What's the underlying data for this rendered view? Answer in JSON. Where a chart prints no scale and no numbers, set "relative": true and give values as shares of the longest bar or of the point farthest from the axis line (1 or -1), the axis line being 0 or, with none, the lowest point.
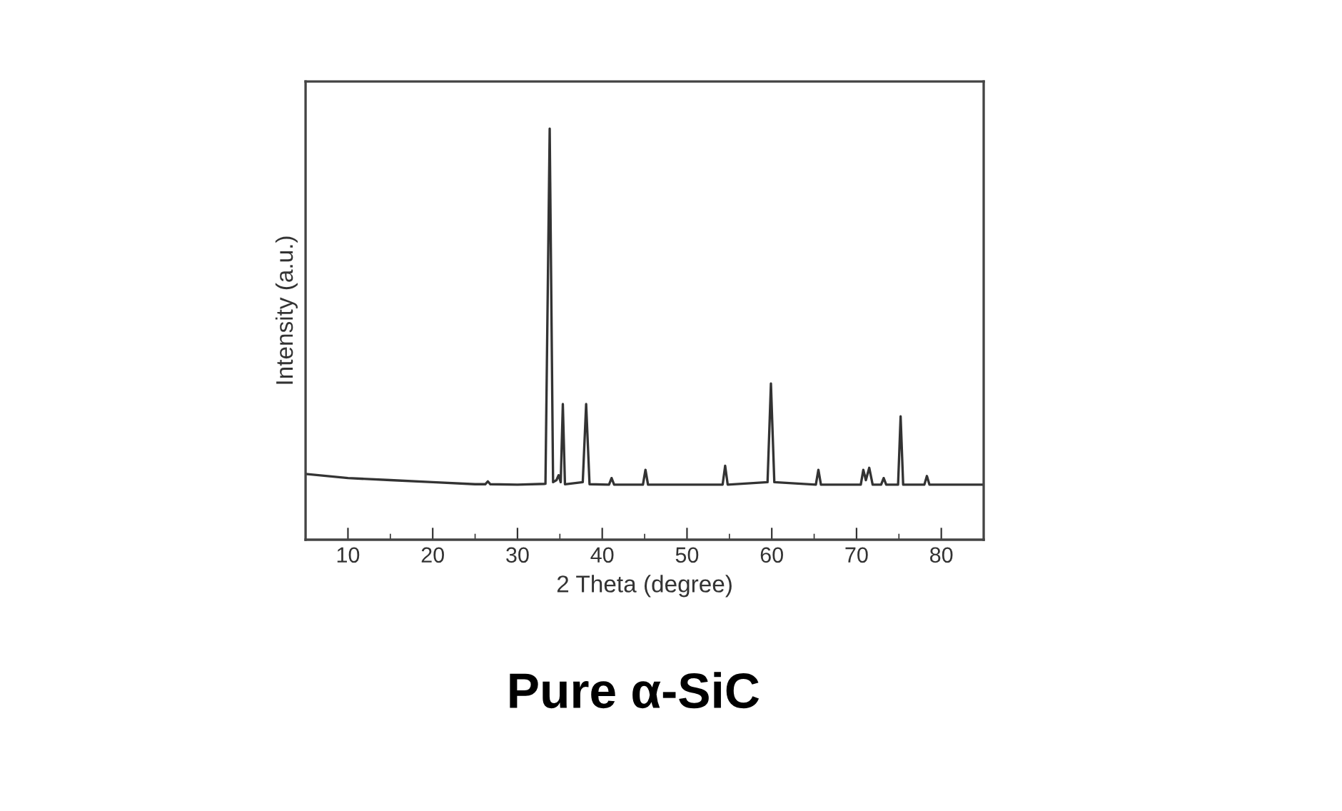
{
  "chart_data": {
    "type": "line",
    "title": "Pure α-SiC",
    "xlabel": "2 Theta (degree)",
    "ylabel": "Intensity (a.u.)",
    "relative": true,
    "grid": false,
    "legend": false,
    "marker": "none",
    "line_style": "solid",
    "xlim": [
      5,
      85
    ],
    "xticks": [
      10,
      {
        "value": 15,
        "label": null
      },
      20,
      {
        "value": 25,
        "label": null
      },
      30,
      {
        "value": 35,
        "label": null
      },
      40,
      {
        "value": 45,
        "label": null
      },
      50,
      {
        "value": 55,
        "label": null
      },
      60,
      {
        "value": 65,
        "label": null
      },
      70,
      {
        "value": 75,
        "label": null
      },
      80
    ],
    "series": [
      {
        "color": "#333333",
        "x": [
          5,
          10,
          15,
          20,
          25,
          26.2,
          26.5,
          26.8,
          30,
          33.3,
          33.8,
          34.2,
          34.6,
          34.85,
          35.1,
          35.35,
          35.6,
          37.7,
          38.1,
          38.5,
          40.8,
          41.1,
          41.4,
          44.8,
          45.1,
          45.4,
          54.2,
          54.5,
          54.8,
          59.5,
          59.9,
          60.3,
          65.2,
          65.5,
          65.8,
          70.5,
          70.8,
          71.1,
          71.5,
          71.9,
          72.9,
          73.2,
          73.5,
          74.9,
          75.2,
          75.5,
          78.0,
          78.3,
          78.6,
          85
        ],
        "values": [
          0.16,
          0.15,
          0.145,
          0.14,
          0.135,
          0.135,
          0.142,
          0.135,
          0.134,
          0.136,
          1.0,
          0.14,
          0.145,
          0.157,
          0.14,
          0.33,
          0.135,
          0.14,
          0.33,
          0.135,
          0.134,
          0.15,
          0.134,
          0.134,
          0.17,
          0.134,
          0.134,
          0.18,
          0.134,
          0.14,
          0.38,
          0.14,
          0.134,
          0.17,
          0.134,
          0.134,
          0.17,
          0.145,
          0.175,
          0.134,
          0.134,
          0.15,
          0.134,
          0.134,
          0.3,
          0.134,
          0.134,
          0.155,
          0.134,
          0.134
        ]
      }
    ]
  }
}
